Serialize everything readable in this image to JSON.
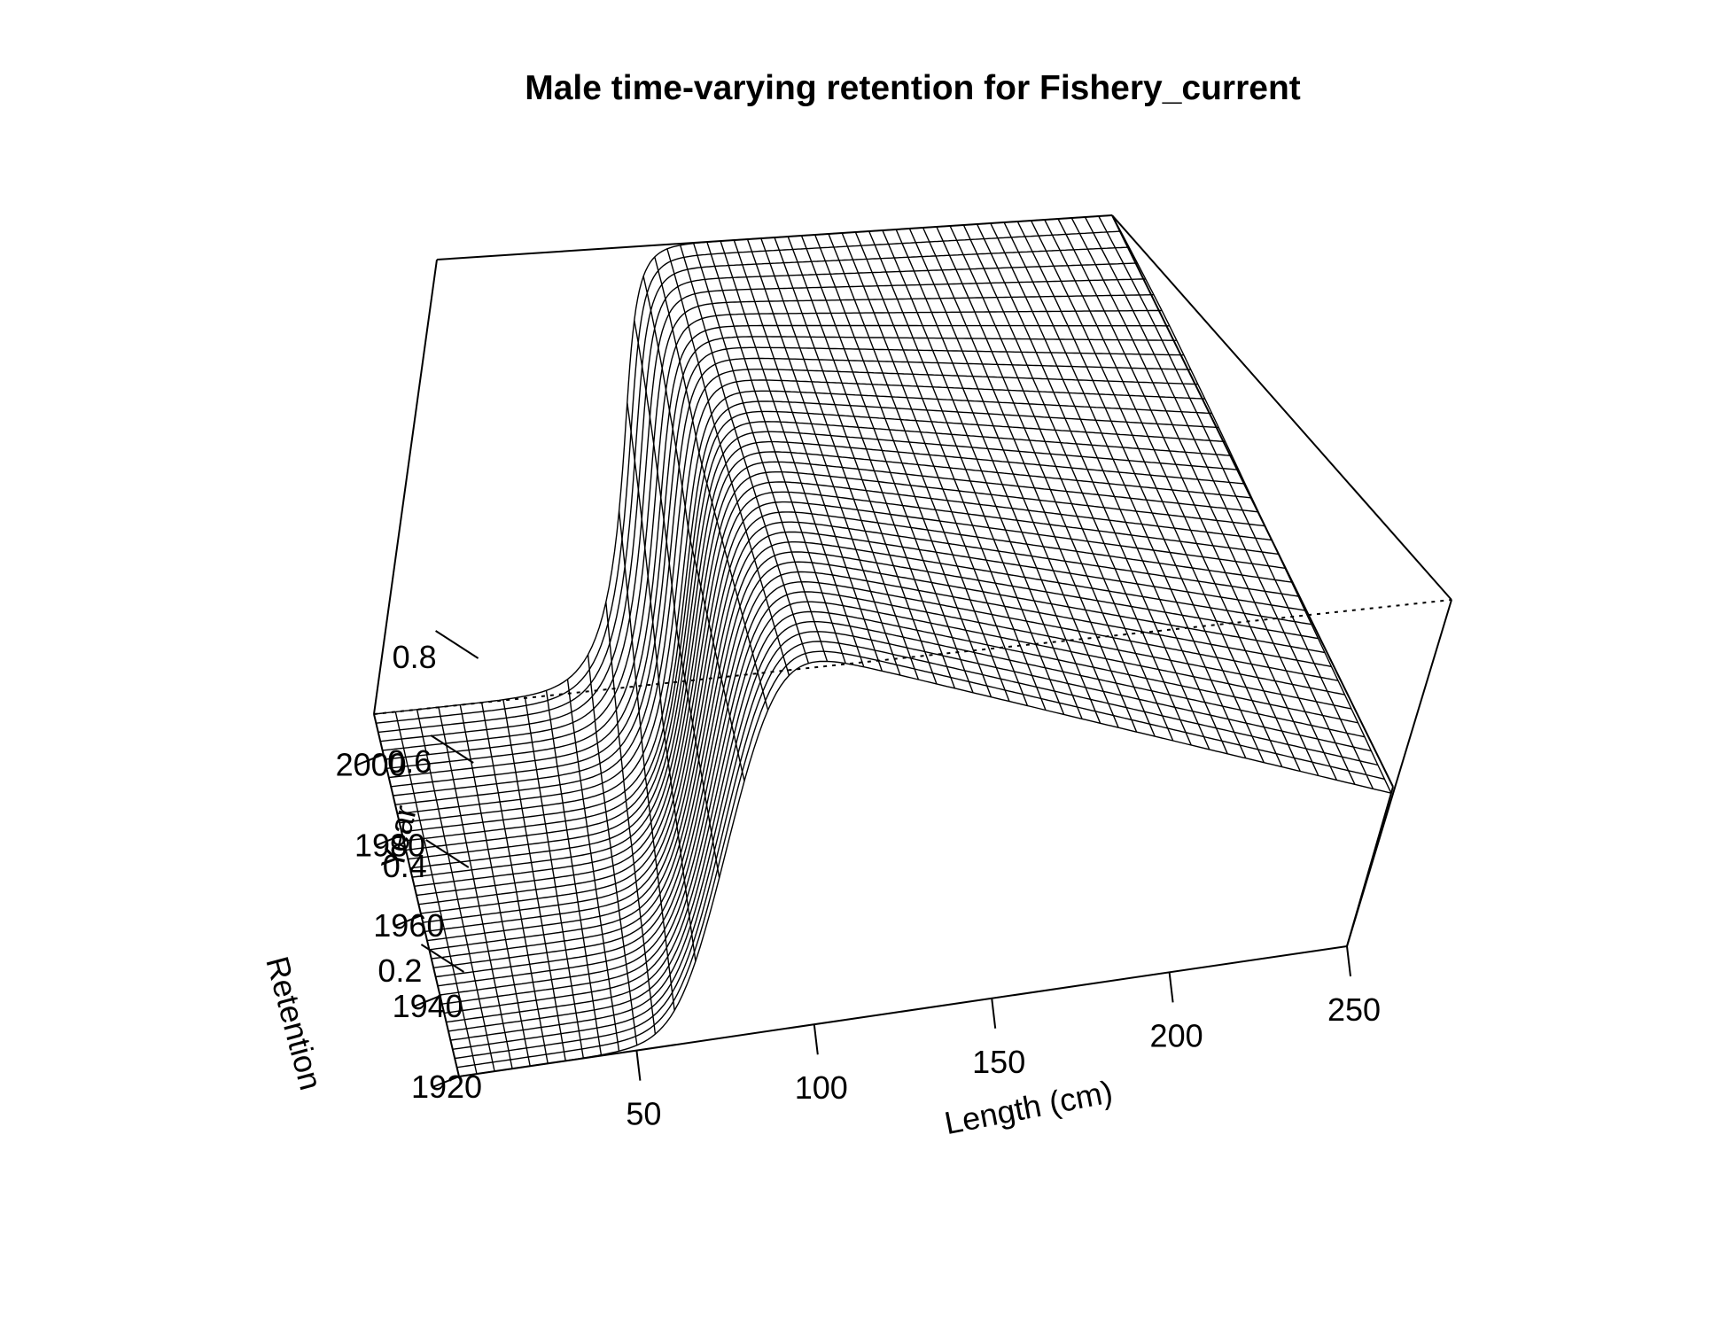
{
  "chart_data": {
    "type": "surface",
    "title": "Male time-varying retention for Fishery_current",
    "xlabel": "Length (cm)",
    "ylabel": "Year",
    "zlabel": "Retention",
    "x_ticks": [
      50,
      100,
      150,
      200,
      250
    ],
    "y_ticks": [
      1920,
      1940,
      1960,
      1980,
      2000
    ],
    "z_ticks": [
      0.2,
      0.4,
      0.6,
      0.8
    ],
    "xlim": [
      0,
      250
    ],
    "ylim": [
      1920,
      2010
    ],
    "zlim": [
      0,
      1
    ],
    "retention_model": "logistic",
    "curves": [
      {
        "year": 1920,
        "inflection_length": 72,
        "width": 5,
        "asymptote": 0.96
      },
      {
        "year": 1940,
        "inflection_length": 72,
        "width": 5,
        "asymptote": 0.96
      },
      {
        "year": 1960,
        "inflection_length": 72,
        "width": 5,
        "asymptote": 0.96
      },
      {
        "year": 1980,
        "inflection_length": 72,
        "width": 5,
        "asymptote": 0.96
      },
      {
        "year": 1995,
        "inflection_length": 68,
        "width": 5,
        "asymptote": 0.97
      },
      {
        "year": 2000,
        "inflection_length": 66,
        "width": 5,
        "asymptote": 0.98
      },
      {
        "year": 2005,
        "inflection_length": 64,
        "width": 5,
        "asymptote": 0.99
      },
      {
        "year": 2010,
        "inflection_length": 62,
        "width": 5,
        "asymptote": 1.0
      }
    ]
  }
}
